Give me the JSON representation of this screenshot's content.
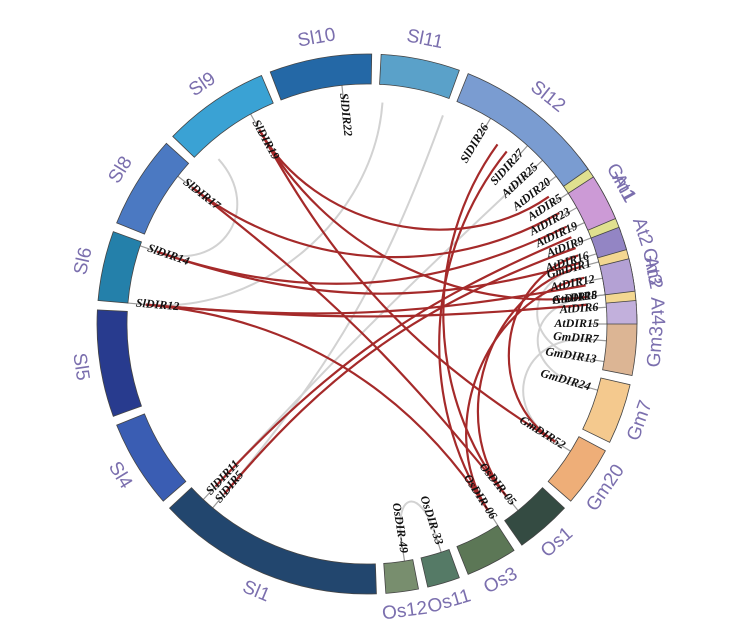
{
  "segments": [
    {
      "id": "Gm1",
      "label": "Gm1",
      "color": "#e0e08f",
      "a0": 322,
      "a1": 340
    },
    {
      "id": "Gm2",
      "label": "Gm2",
      "color": "#f3d791",
      "a0": 342,
      "a1": 356
    },
    {
      "id": "Gm3",
      "label": "Gm3",
      "color": "#dcb594",
      "a0": 358,
      "a1": 371
    },
    {
      "id": "Gm7",
      "label": "Gm7",
      "color": "#f4c98e",
      "a0": 373,
      "a1": 386
    },
    {
      "id": "Gm20",
      "label": "Gm20",
      "color": "#eeae78",
      "a0": 388,
      "a1": 401
    },
    {
      "id": "Os1",
      "label": "Os1",
      "color": "#344b42",
      "a0": 403,
      "a1": 415
    },
    {
      "id": "Os3",
      "label": "Os3",
      "color": "#5c7756",
      "a0": 417,
      "a1": 428
    },
    {
      "id": "Os11",
      "label": "Os11",
      "color": "#557a66",
      "a0": 430,
      "a1": 437
    },
    {
      "id": "Os12",
      "label": "Os12",
      "color": "#788e6e",
      "a0": 439,
      "a1": 446
    },
    {
      "id": "Sl1",
      "label": "Sl1",
      "color": "#22466e",
      "a0": 448,
      "a1": 497
    },
    {
      "id": "Sl4",
      "label": "Sl4",
      "color": "#3a5db3",
      "a0": 499,
      "a1": 518
    },
    {
      "id": "Sl5",
      "label": "Sl5",
      "color": "#283b8e",
      "a0": 520,
      "a1": 543
    },
    {
      "id": "Sl6",
      "label": "Sl6",
      "color": "#2480aa",
      "a0": 545,
      "a1": 560
    },
    {
      "id": "Sl8",
      "label": "Sl8",
      "color": "#4b79c2",
      "a0": 562,
      "a1": 582
    },
    {
      "id": "Sl9",
      "label": "Sl9",
      "color": "#3aa2d4",
      "a0": 584,
      "a1": 607
    },
    {
      "id": "Sl10",
      "label": "Sl10",
      "color": "#2468a6",
      "a0": 609,
      "a1": 631
    },
    {
      "id": "Sl11",
      "label": "Sl11",
      "color": "#5aa1c9",
      "a0": 633,
      "a1": 650
    },
    {
      "id": "Sl12",
      "label": "Sl12",
      "color": "#7a9cd1",
      "a0": 652,
      "a1": 685
    },
    {
      "id": "At1",
      "label": "At1",
      "color": "#cc9ad6",
      "a0": 687,
      "a1": 697
    },
    {
      "id": "At2",
      "label": "At2",
      "color": "#9385c4",
      "a0": 699,
      "a1": 704
    },
    {
      "id": "At3",
      "label": "At3",
      "color": "#b4a1d4",
      "a0": 706,
      "a1": 713
    },
    {
      "id": "At4",
      "label": "At4",
      "color": "#c2b0dc",
      "a0": 715,
      "a1": 720
    }
  ],
  "genes": [
    {
      "id": "GmDIR1",
      "label": "GmDIR1",
      "angle": 345
    },
    {
      "id": "GmDIR5",
      "label": "GmDIR5",
      "angle": 353
    },
    {
      "id": "GmDIR7",
      "label": "GmDIR7",
      "angle": 364
    },
    {
      "id": "GmDIR13",
      "label": "GmDIR13",
      "angle": 369
    },
    {
      "id": "GmDIR24",
      "label": "GmDIR24",
      "angle": 376
    },
    {
      "id": "GmDIR52",
      "label": "GmDIR52",
      "angle": 392
    },
    {
      "id": "OsDIR-05",
      "label": "OsDIR-05",
      "angle": 411
    },
    {
      "id": "OsDIR-06",
      "label": "OsDIR-06",
      "angle": 417
    },
    {
      "id": "OsDIR-33",
      "label": "OsDIR-33",
      "angle": 432
    },
    {
      "id": "OsDIR-49",
      "label": "OsDIR-49",
      "angle": 441
    },
    {
      "id": "SlDIR5",
      "label": "SlDIR5",
      "angle": 490
    },
    {
      "id": "SlDIR11",
      "label": "SlDIR11",
      "angle": 493
    },
    {
      "id": "SlDIR12",
      "label": "SlDIR12",
      "angle": 545
    },
    {
      "id": "SlDIR14",
      "label": "SlDIR14",
      "angle": 559
    },
    {
      "id": "SlDIR17",
      "label": "SlDIR17",
      "angle": 578
    },
    {
      "id": "SlDIR19",
      "label": "SlDIR19",
      "angle": 601
    },
    {
      "id": "SlDIR22",
      "label": "SlDIR22",
      "angle": 624
    },
    {
      "id": "SlDIR26",
      "label": "SlDIR26",
      "angle": 661
    },
    {
      "id": "SlDIR27",
      "label": "SlDIR27",
      "angle": 672
    },
    {
      "id": "AtDIR25",
      "label": "AtDIR25",
      "angle": 677
    },
    {
      "id": "AtDIR20",
      "label": "AtDIR20",
      "angle": 682
    },
    {
      "id": "AtDIR5",
      "label": "AtDIR5",
      "angle": 687
    },
    {
      "id": "AtDIR23",
      "label": "AtDIR23",
      "angle": 691
    },
    {
      "id": "AtDIR19",
      "label": "AtDIR19",
      "angle": 695
    },
    {
      "id": "AtDIR9",
      "label": "AtDIR9",
      "angle": 699
    },
    {
      "id": "AtDIR16",
      "label": "AtDIR16",
      "angle": 703
    },
    {
      "id": "AtDIR12",
      "label": "AtDIR12",
      "angle": 709
    },
    {
      "id": "AtDIR18",
      "label": "AtDIR18",
      "angle": 713
    },
    {
      "id": "AtDIR6",
      "label": "AtDIR6",
      "angle": 716
    },
    {
      "id": "AtDIR15",
      "label": "AtDIR15",
      "angle": 720
    }
  ],
  "links": [
    {
      "from": 345,
      "to": 369,
      "kind": "gray"
    },
    {
      "from": 353,
      "to": 376,
      "kind": "gray"
    },
    {
      "from": 364,
      "to": 392,
      "kind": "gray"
    },
    {
      "from": 432,
      "to": 441,
      "kind": "gray"
    },
    {
      "from": 650,
      "to": 490,
      "kind": "gray"
    },
    {
      "from": 634,
      "to": 545,
      "kind": "gray"
    },
    {
      "from": 588,
      "to": 559,
      "kind": "gray"
    },
    {
      "from": 677,
      "to": 493,
      "kind": "gray"
    },
    {
      "from": 702,
      "to": 392,
      "kind": "red"
    },
    {
      "from": 705,
      "to": 411,
      "kind": "red"
    },
    {
      "from": 708,
      "to": 417,
      "kind": "red"
    },
    {
      "from": 700,
      "to": 490,
      "kind": "red"
    },
    {
      "from": 697,
      "to": 493,
      "kind": "red"
    },
    {
      "from": 710,
      "to": 545,
      "kind": "red"
    },
    {
      "from": 704,
      "to": 559,
      "kind": "red"
    },
    {
      "from": 690,
      "to": 578,
      "kind": "red"
    },
    {
      "from": 713,
      "to": 601,
      "kind": "red"
    },
    {
      "from": 694,
      "to": 559,
      "kind": "red"
    },
    {
      "from": 666,
      "to": 411,
      "kind": "red"
    },
    {
      "from": 669,
      "to": 417,
      "kind": "red"
    },
    {
      "from": 578,
      "to": 411,
      "kind": "red"
    },
    {
      "from": 601,
      "to": 392,
      "kind": "red"
    },
    {
      "from": 545,
      "to": 417,
      "kind": "red"
    },
    {
      "from": 685,
      "to": 601,
      "kind": "red"
    },
    {
      "from": 715,
      "to": 545,
      "kind": "red"
    }
  ]
}
